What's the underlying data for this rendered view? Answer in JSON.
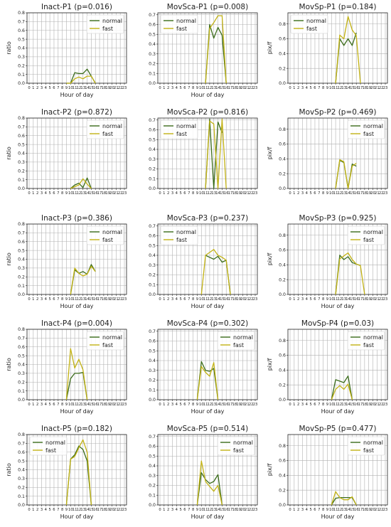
{
  "figure": {
    "colors": {
      "normal": "#3a6b1a",
      "fast": "#c2b214",
      "grid": "#b0b0b0",
      "axis": "#222222"
    },
    "hours": [
      "0",
      "1",
      "2",
      "3",
      "4",
      "5",
      "6",
      "7",
      "8",
      "9",
      "10",
      "11",
      "12",
      "13",
      "14",
      "15",
      "16",
      "17",
      "18",
      "19",
      "20",
      "21",
      "22",
      "23"
    ]
  },
  "chart_data": [
    {
      "type": "line",
      "title": "Inact-P1 (p=0.016)",
      "xlabel": "Hour of day",
      "ylabel": "ratio",
      "ylim": [
        0,
        0.8
      ],
      "yticks": [
        "0.0",
        "0.1",
        "0.2",
        "0.3",
        "0.4",
        "0.5",
        "0.6",
        "0.7",
        "0.8"
      ],
      "legend": "top-right",
      "grid": true,
      "series": [
        {
          "name": "normal",
          "x": [
            9,
            10,
            11,
            12,
            13,
            14,
            15,
            16
          ],
          "values": [
            0,
            0,
            0.12,
            0.11,
            0.11,
            0.16,
            0.08,
            0
          ]
        },
        {
          "name": "fast",
          "x": [
            9,
            10,
            11,
            12,
            13,
            14,
            15,
            16
          ],
          "values": [
            0,
            0,
            0.05,
            0.07,
            0.05,
            0.08,
            0.08,
            0
          ]
        }
      ]
    },
    {
      "type": "line",
      "title": "MovSca-P1 (p=0.008)",
      "xlabel": "Hour of day",
      "ylabel": "",
      "ylim": [
        0,
        0.72
      ],
      "yticks": [
        "0.0",
        "0.1",
        "0.2",
        "0.3",
        "0.4",
        "0.5",
        "0.6",
        "0.7"
      ],
      "legend": "top-left",
      "grid": true,
      "series": [
        {
          "name": "normal",
          "x": [
            11,
            12,
            13,
            14,
            15,
            16
          ],
          "values": [
            0,
            0.6,
            0.46,
            0.57,
            0.49,
            0.0
          ]
        },
        {
          "name": "fast",
          "x": [
            11,
            12,
            13,
            14,
            15,
            16
          ],
          "values": [
            0,
            0.56,
            0.62,
            0.69,
            0.69,
            0.0
          ]
        }
      ]
    },
    {
      "type": "line",
      "title": "MovSp-P1 (p=0.184)",
      "xlabel": "",
      "ylabel": "pix/f",
      "ylim": [
        0,
        0.95
      ],
      "yticks": [
        "0.0",
        "0.2",
        "0.4",
        "0.6",
        "0.8"
      ],
      "legend": "top-left",
      "grid": true,
      "series": [
        {
          "name": "normal",
          "x": [
            11,
            12,
            13,
            14,
            15,
            16
          ],
          "values": [
            0,
            0.6,
            0.51,
            0.6,
            0.51,
            0.68
          ]
        },
        {
          "name": "fast",
          "x": [
            11,
            12,
            13,
            14,
            15,
            16,
            17
          ],
          "values": [
            0,
            0.65,
            0.6,
            0.9,
            0.72,
            0.64,
            0
          ]
        }
      ]
    },
    {
      "type": "line",
      "title": "Inact-P2 (p=0.872)",
      "xlabel": "",
      "ylabel": "ratio",
      "ylim": [
        0,
        0.8
      ],
      "yticks": [
        "0.0",
        "0.1",
        "0.2",
        "0.3",
        "0.4",
        "0.5",
        "0.6",
        "0.7",
        "0.8"
      ],
      "legend": "top-right",
      "grid": true,
      "series": [
        {
          "name": "normal",
          "x": [
            10,
            11,
            12,
            13,
            14,
            15
          ],
          "values": [
            0,
            0.04,
            0.06,
            0.01,
            0.12,
            0
          ]
        },
        {
          "name": "fast",
          "x": [
            10,
            11,
            12,
            13,
            14,
            15
          ],
          "values": [
            0,
            0.02,
            0.04,
            0.11,
            0.05,
            0
          ]
        }
      ]
    },
    {
      "type": "line",
      "title": "MovSca-P2 (p=0.816)",
      "xlabel": "",
      "ylabel": "",
      "ylim": [
        0,
        0.72
      ],
      "yticks": [
        "0.0",
        "0.1",
        "0.2",
        "0.3",
        "0.4",
        "0.5",
        "0.6",
        "0.7"
      ],
      "legend": "top-left",
      "grid": true,
      "series": [
        {
          "name": "normal",
          "x": [
            11,
            12,
            13,
            14,
            15
          ],
          "values": [
            0,
            0.71,
            0,
            0.68,
            0.57
          ]
        },
        {
          "name": "fast",
          "x": [
            11,
            12,
            13,
            14,
            15,
            16
          ],
          "values": [
            0,
            0.69,
            0.66,
            0,
            0.71,
            0
          ]
        }
      ]
    },
    {
      "type": "line",
      "title": "MovSp-P2 (p=0.469)",
      "xlabel": "",
      "ylabel": "pix/f",
      "ylim": [
        0,
        0.95
      ],
      "yticks": [
        "0.0",
        "0.2",
        "0.4",
        "0.6",
        "0.8"
      ],
      "legend": "top-right",
      "grid": true,
      "series": [
        {
          "name": "normal",
          "x": [
            11,
            12,
            13,
            14,
            15,
            16
          ],
          "values": [
            0,
            0.38,
            0.35,
            0,
            0.33,
            0.3
          ]
        },
        {
          "name": "fast",
          "x": [
            11,
            12,
            13,
            14,
            15,
            16
          ],
          "values": [
            0,
            0.39,
            0.36,
            0,
            0.3,
            0.34
          ]
        }
      ]
    },
    {
      "type": "line",
      "title": "Inact-P3 (p=0.386)",
      "xlabel": "Hour of day",
      "ylabel": "ratio",
      "ylim": [
        0,
        0.8
      ],
      "yticks": [
        "0.0",
        "0.1",
        "0.2",
        "0.3",
        "0.4",
        "0.5",
        "0.6",
        "0.7",
        "0.8"
      ],
      "legend": "top-right",
      "grid": true,
      "series": [
        {
          "name": "normal",
          "x": [
            10,
            11,
            12,
            13,
            14,
            15,
            16
          ],
          "values": [
            0,
            0.28,
            0.24,
            0.26,
            0.23,
            0.34,
            0.26
          ]
        },
        {
          "name": "fast",
          "x": [
            10,
            11,
            12,
            13,
            14,
            15,
            16
          ],
          "values": [
            0,
            0.3,
            0.24,
            0.21,
            0.23,
            0.32,
            0.26
          ]
        }
      ]
    },
    {
      "type": "line",
      "title": "MovSca-P3 (p=0.237)",
      "xlabel": "Hour of day",
      "ylabel": "",
      "ylim": [
        0,
        0.72
      ],
      "yticks": [
        "0.0",
        "0.1",
        "0.2",
        "0.3",
        "0.4",
        "0.5",
        "0.6",
        "0.7"
      ],
      "legend": "top-left",
      "grid": true,
      "series": [
        {
          "name": "normal",
          "x": [
            11,
            12,
            13,
            14,
            15,
            16,
            17
          ],
          "values": [
            0.4,
            0.38,
            0.36,
            0.39,
            0.33,
            0.35,
            0
          ]
        },
        {
          "name": "fast",
          "x": [
            10,
            11,
            12,
            13,
            14,
            15,
            16,
            17
          ],
          "values": [
            0,
            0.4,
            0.43,
            0.46,
            0.4,
            0.38,
            0.35,
            0
          ]
        }
      ]
    },
    {
      "type": "line",
      "title": "MovSp-P3 (p=0.925)",
      "xlabel": "Hour of day",
      "ylabel": "pix/f",
      "ylim": [
        0,
        0.95
      ],
      "yticks": [
        "0.0",
        "0.2",
        "0.4",
        "0.6",
        "0.8"
      ],
      "legend": "top-right",
      "grid": true,
      "series": [
        {
          "name": "normal",
          "x": [
            11,
            12,
            13,
            14,
            15,
            16,
            17
          ],
          "values": [
            0,
            0.53,
            0.47,
            0.51,
            0.43,
            0.41,
            0.39
          ]
        },
        {
          "name": "fast",
          "x": [
            11,
            12,
            13,
            14,
            15,
            16,
            17,
            18
          ],
          "values": [
            0,
            0.48,
            0.52,
            0.56,
            0.47,
            0.41,
            0.39,
            0
          ]
        }
      ]
    },
    {
      "type": "line",
      "title": "Inact-P4 (p=0.004)",
      "xlabel": "Hour of day",
      "ylabel": "ratio",
      "ylim": [
        0,
        0.8
      ],
      "yticks": [
        "0.0",
        "0.1",
        "0.2",
        "0.3",
        "0.4",
        "0.5",
        "0.6",
        "0.7",
        "0.8"
      ],
      "legend": "top-right",
      "grid": true,
      "series": [
        {
          "name": "normal",
          "x": [
            9,
            10,
            11,
            12,
            13,
            14
          ],
          "values": [
            0,
            0.24,
            0.3,
            0.3,
            0.31,
            0
          ]
        },
        {
          "name": "fast",
          "x": [
            9,
            10,
            11,
            12,
            13,
            14
          ],
          "values": [
            0,
            0.58,
            0.36,
            0.46,
            0.34,
            0
          ]
        }
      ]
    },
    {
      "type": "line",
      "title": "MovSca-P4 (p=0.302)",
      "xlabel": "Hour of day",
      "ylabel": "",
      "ylim": [
        0,
        0.72
      ],
      "yticks": [
        "0.0",
        "0.1",
        "0.2",
        "0.3",
        "0.4",
        "0.5",
        "0.6",
        "0.7"
      ],
      "legend": "top-right",
      "grid": true,
      "series": [
        {
          "name": "normal",
          "x": [
            9,
            10,
            11,
            12,
            13,
            14
          ],
          "values": [
            0,
            0.39,
            0.3,
            0.29,
            0.32,
            0
          ]
        },
        {
          "name": "fast",
          "x": [
            9,
            10,
            11,
            12,
            13,
            14
          ],
          "values": [
            0,
            0.34,
            0.28,
            0.24,
            0.38,
            0
          ]
        }
      ]
    },
    {
      "type": "line",
      "title": "MovSp-P4 (p=0.03)",
      "xlabel": "Hour of day",
      "ylabel": "pix/f",
      "ylim": [
        0,
        0.95
      ],
      "yticks": [
        "0.0",
        "0.2",
        "0.4",
        "0.6",
        "0.8"
      ],
      "legend": "top-right",
      "grid": true,
      "series": [
        {
          "name": "normal",
          "x": [
            10,
            11,
            12,
            13,
            14,
            15
          ],
          "values": [
            0,
            0.27,
            0.25,
            0.23,
            0.32,
            0
          ]
        },
        {
          "name": "fast",
          "x": [
            10,
            11,
            12,
            13,
            14,
            15
          ],
          "values": [
            0,
            0.14,
            0.19,
            0.14,
            0.21,
            0
          ]
        }
      ]
    },
    {
      "type": "line",
      "title": "Inact-P5 (p=0.182)",
      "xlabel": "Hour of day",
      "ylabel": "ratio",
      "ylim": [
        0,
        0.8
      ],
      "yticks": [
        "0.0",
        "0.1",
        "0.2",
        "0.3",
        "0.4",
        "0.5",
        "0.6",
        "0.7",
        "0.8"
      ],
      "legend": "top-left",
      "grid": true,
      "series": [
        {
          "name": "normal",
          "x": [
            9,
            10,
            11,
            12,
            13,
            14,
            15
          ],
          "values": [
            0,
            0.52,
            0.57,
            0.67,
            0.63,
            0.5,
            0
          ]
        },
        {
          "name": "fast",
          "x": [
            9,
            10,
            11,
            12,
            13,
            14,
            15
          ],
          "values": [
            0,
            0.52,
            0.55,
            0.65,
            0.74,
            0.6,
            0
          ]
        }
      ]
    },
    {
      "type": "line",
      "title": "MovSca-P5 (p=0.514)",
      "xlabel": "Hour of day",
      "ylabel": "",
      "ylim": [
        0,
        0.72
      ],
      "yticks": [
        "0.0",
        "0.1",
        "0.2",
        "0.3",
        "0.4",
        "0.5",
        "0.6",
        "0.7"
      ],
      "legend": "top-right",
      "grid": true,
      "series": [
        {
          "name": "normal",
          "x": [
            9,
            10,
            11,
            12,
            13,
            14,
            15
          ],
          "values": [
            0,
            0.33,
            0.26,
            0.22,
            0.24,
            0.31,
            0
          ]
        },
        {
          "name": "fast",
          "x": [
            9,
            10,
            11,
            12,
            13,
            14,
            15
          ],
          "values": [
            0,
            0.45,
            0.24,
            0.19,
            0.14,
            0.2,
            0
          ]
        }
      ]
    },
    {
      "type": "line",
      "title": "MovSp-P5 (p=0.477)",
      "xlabel": "Hour of day",
      "ylabel": "pix/f",
      "ylim": [
        0,
        0.95
      ],
      "yticks": [
        "0.0",
        "0.2",
        "0.4",
        "0.6",
        "0.8"
      ],
      "legend": "top-right",
      "grid": true,
      "series": [
        {
          "name": "normal",
          "x": [
            10,
            11,
            12,
            13,
            14,
            15,
            16
          ],
          "values": [
            0,
            0.09,
            0.1,
            0.1,
            0.1,
            0.1,
            0
          ]
        },
        {
          "name": "fast",
          "x": [
            10,
            11,
            12,
            13,
            14,
            15,
            16
          ],
          "values": [
            0,
            0.18,
            0.1,
            0.07,
            0.07,
            0.11,
            0
          ]
        }
      ]
    }
  ]
}
